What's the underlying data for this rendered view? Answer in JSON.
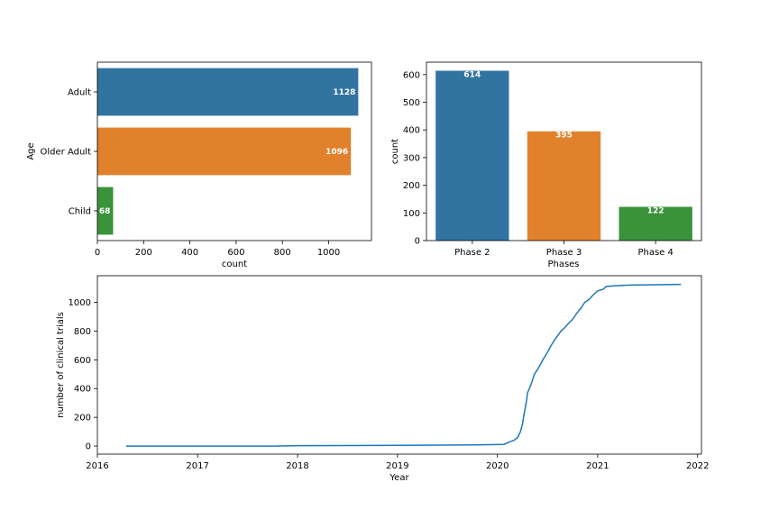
{
  "chart_data": [
    {
      "type": "bar",
      "orientation": "horizontal",
      "categories": [
        "Adult",
        "Older Adult",
        "Child"
      ],
      "values": [
        1128,
        1096,
        68
      ],
      "value_labels": [
        "1128",
        "1096",
        "68"
      ],
      "colors": [
        "#3274a1",
        "#e1812c",
        "#3a923a"
      ],
      "xlabel": "count",
      "ylabel": "Age",
      "xlim": [
        0,
        1185
      ],
      "xticks": [
        0,
        200,
        400,
        600,
        800,
        1000
      ],
      "xtick_labels": [
        "0",
        "200",
        "400",
        "600",
        "800",
        "1000"
      ],
      "grid": false
    },
    {
      "type": "bar",
      "orientation": "vertical",
      "categories": [
        "Phase 2",
        "Phase 3",
        "Phase 4"
      ],
      "values": [
        614,
        395,
        122
      ],
      "value_labels": [
        "614",
        "395",
        "122"
      ],
      "colors": [
        "#3274a1",
        "#e1812c",
        "#3a923a"
      ],
      "xlabel": "Phases",
      "ylabel": "count",
      "ylim": [
        0,
        645
      ],
      "yticks": [
        0,
        100,
        200,
        300,
        400,
        500,
        600
      ],
      "ytick_labels": [
        "0",
        "100",
        "200",
        "300",
        "400",
        "500",
        "600"
      ],
      "grid": false
    },
    {
      "type": "line",
      "color": "#1f77b4",
      "xlabel": "Year",
      "ylabel": "number of clinical trials",
      "xlim": [
        "2016-01-01",
        "2022-01-15"
      ],
      "ylim": [
        -56,
        1185
      ],
      "xticks": [
        "2016-01-01",
        "2017-01-01",
        "2018-01-01",
        "2019-01-01",
        "2020-01-01",
        "2021-01-01",
        "2022-01-01"
      ],
      "xtick_labels": [
        "2016",
        "2017",
        "2018",
        "2019",
        "2020",
        "2021",
        "2022"
      ],
      "yticks": [
        0,
        200,
        400,
        600,
        800,
        1000
      ],
      "ytick_labels": [
        "0",
        "200",
        "400",
        "600",
        "800",
        "1000"
      ],
      "grid": false,
      "x": [
        "2016-04-15",
        "2017-10-01",
        "2018-01-01",
        "2019-01-01",
        "2019-10-01",
        "2020-01-25",
        "2020-02-15",
        "2020-03-01",
        "2020-03-15",
        "2020-03-25",
        "2020-04-01",
        "2020-04-05",
        "2020-04-10",
        "2020-04-15",
        "2020-04-20",
        "2020-05-01",
        "2020-05-15",
        "2020-06-01",
        "2020-06-15",
        "2020-07-01",
        "2020-07-15",
        "2020-08-01",
        "2020-08-20",
        "2020-09-01",
        "2020-09-15",
        "2020-10-01",
        "2020-10-15",
        "2020-11-01",
        "2020-11-15",
        "2020-12-01",
        "2020-12-15",
        "2021-01-01",
        "2021-01-20",
        "2021-02-01",
        "2021-03-01",
        "2021-04-01",
        "2021-05-01",
        "2021-07-01",
        "2021-09-01",
        "2021-11-01"
      ],
      "y": [
        0,
        0,
        3,
        5,
        8,
        12,
        30,
        40,
        60,
        100,
        150,
        200,
        250,
        300,
        370,
        420,
        500,
        550,
        600,
        650,
        700,
        750,
        800,
        820,
        850,
        880,
        920,
        960,
        1000,
        1020,
        1050,
        1080,
        1090,
        1110,
        1115,
        1118,
        1120,
        1122,
        1123,
        1125
      ]
    }
  ]
}
